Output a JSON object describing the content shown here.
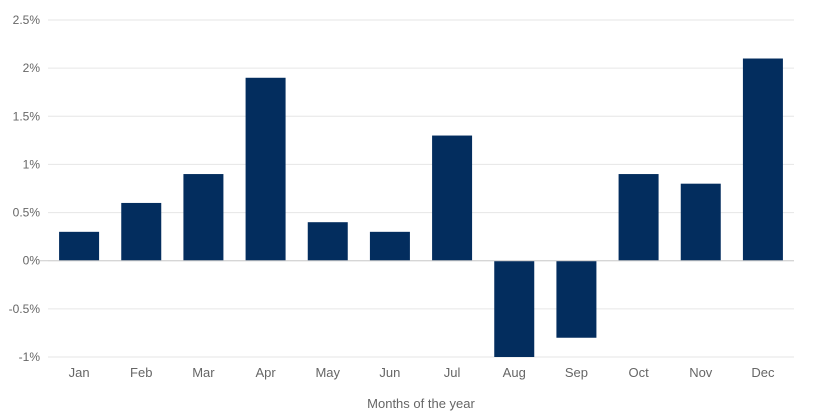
{
  "chart_data": {
    "type": "bar",
    "title": "",
    "xlabel": "Months of the year",
    "ylabel": "",
    "categories": [
      "Jan",
      "Feb",
      "Mar",
      "Apr",
      "May",
      "Jun",
      "Jul",
      "Aug",
      "Sep",
      "Oct",
      "Nov",
      "Dec"
    ],
    "values": [
      0.3,
      0.6,
      0.9,
      1.9,
      0.4,
      0.3,
      1.3,
      -1.0,
      -0.8,
      0.9,
      0.8,
      2.1
    ],
    "ylim": [
      -1,
      2.5
    ],
    "yticks": [
      2.5,
      2,
      1.5,
      1,
      0.5,
      0,
      -0.5,
      -1
    ],
    "ytick_labels": [
      "2.5%",
      "2%",
      "1.5%",
      "1%",
      "0.5%",
      "0%",
      "-0.5%",
      "-1%"
    ],
    "grid": true,
    "legend": false,
    "colors": {
      "bar": "#032d5e",
      "grid_line": "#e6e6e6",
      "axis_line": "#cccccc",
      "label": "#666666"
    }
  }
}
